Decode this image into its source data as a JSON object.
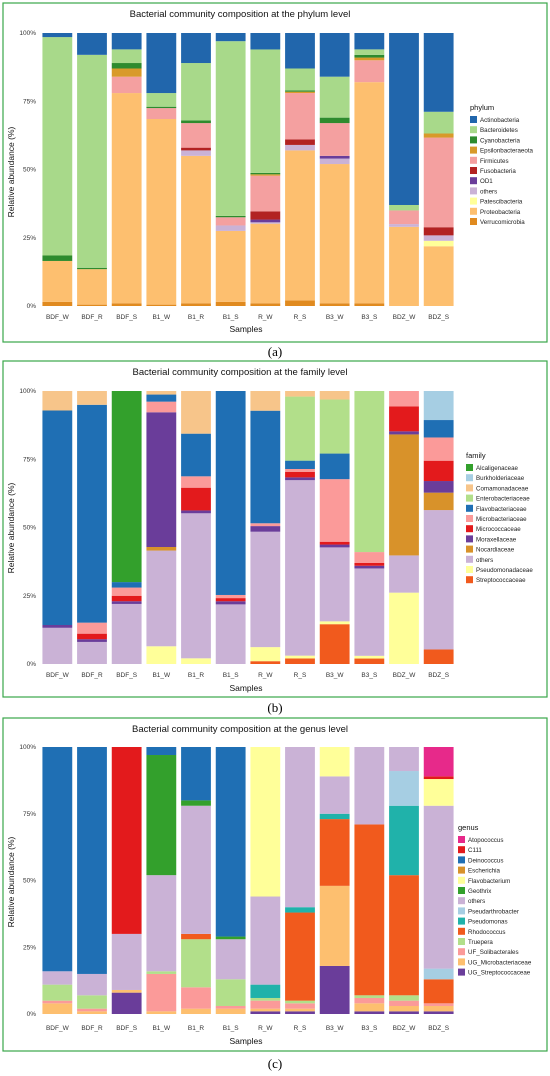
{
  "chart_data": [
    {
      "type": "bar",
      "stacked": true,
      "title": "Bacterial community composition at the phylum level",
      "xlabel": "Samples",
      "ylabel": "Relative abundance (%)",
      "ylim": [
        0,
        100
      ],
      "yticks": [
        "0%",
        "25%",
        "50%",
        "75%",
        "100%"
      ],
      "legend_title": "phylum",
      "legend_position": "right",
      "caption": "(a)",
      "categories": [
        "BDF_W",
        "BDF_R",
        "BDF_S",
        "B1_W",
        "B1_R",
        "B1_S",
        "R_W",
        "R_S",
        "B3_W",
        "B3_S",
        "BDZ_W",
        "BDZ_S"
      ],
      "series": [
        {
          "name": "Actinobacteria",
          "color": "#2166ac",
          "values": [
            1.5,
            8,
            6,
            22,
            11,
            3,
            6,
            13,
            16,
            6,
            63,
            29
          ]
        },
        {
          "name": "Bacteroidetes",
          "color": "#a8d98a",
          "values": [
            80,
            78,
            5,
            5,
            21,
            64,
            45,
            8,
            15,
            2,
            2,
            8
          ]
        },
        {
          "name": "Cyanobacteria",
          "color": "#2e8b2e",
          "values": [
            2,
            0.5,
            2,
            0.5,
            1,
            0.5,
            0.5,
            0.5,
            2,
            1,
            0,
            0
          ]
        },
        {
          "name": "Epsilonbacteraeota",
          "color": "#d89a2a",
          "values": [
            0,
            0,
            3,
            0,
            0,
            0,
            0.5,
            0.5,
            0,
            1,
            0,
            1.5
          ]
        },
        {
          "name": "Firmicutes",
          "color": "#f4a0a0",
          "values": [
            0,
            0,
            6,
            4,
            9,
            3,
            13,
            17,
            12,
            8,
            5,
            33
          ]
        },
        {
          "name": "Fusobacteria",
          "color": "#b22222",
          "values": [
            0,
            0,
            0,
            0,
            1,
            0,
            3,
            2,
            0,
            0,
            0,
            3
          ]
        },
        {
          "name": "OD1",
          "color": "#6a3d9a",
          "values": [
            0,
            0,
            0,
            0,
            0,
            0,
            1,
            0,
            1,
            0,
            0,
            0
          ]
        },
        {
          "name": "others",
          "color": "#cab2d6",
          "values": [
            0,
            0,
            0,
            0,
            2,
            2,
            0.5,
            2,
            2,
            0,
            1,
            2
          ]
        },
        {
          "name": "Patescibacteria",
          "color": "#ffff99",
          "values": [
            0,
            0,
            0,
            0,
            0,
            0,
            0,
            0,
            0,
            0,
            0,
            2
          ]
        },
        {
          "name": "Proteobacteria",
          "color": "#fdbf6f",
          "values": [
            15,
            13,
            77,
            68,
            54,
            26,
            29,
            55,
            51,
            81,
            29,
            22
          ]
        },
        {
          "name": "Verrucomicrobia",
          "color": "#e08a1f",
          "values": [
            1.5,
            0.5,
            1,
            0.5,
            1,
            1.5,
            1,
            2,
            1,
            1,
            0,
            0
          ]
        }
      ]
    },
    {
      "type": "bar",
      "stacked": true,
      "title": "Bacterial community composition at the family level",
      "xlabel": "Samples",
      "ylabel": "Relative abundance (%)",
      "ylim": [
        0,
        100
      ],
      "yticks": [
        "0%",
        "25%",
        "50%",
        "75%",
        "100%"
      ],
      "legend_title": "family",
      "legend_position": "right",
      "caption": "(b)",
      "categories": [
        "BDF_W",
        "BDF_R",
        "BDF_S",
        "B1_W",
        "B1_R",
        "B1_S",
        "R_W",
        "R_S",
        "B3_W",
        "B3_S",
        "BDZ_W",
        "BDZ_S"
      ],
      "series": [
        {
          "name": "Alcaligenaceae",
          "color": "#33a02c",
          "values": [
            0,
            0,
            70,
            0,
            0,
            0,
            0,
            0,
            0,
            0,
            0,
            0
          ]
        },
        {
          "name": "Burkholderiaceae",
          "color": "#a6cee3",
          "values": [
            0,
            0,
            0,
            0,
            0,
            0,
            0,
            0,
            0,
            0,
            0,
            10
          ]
        },
        {
          "name": "Comamonadaceae",
          "color": "#f7c58a",
          "values": [
            7,
            5,
            0,
            1,
            15,
            0,
            7,
            2,
            3,
            0,
            0,
            0
          ]
        },
        {
          "name": "Enterobacteriaceae",
          "color": "#b2df8a",
          "values": [
            0,
            0,
            0,
            0,
            0,
            0,
            0,
            23,
            19,
            59,
            0,
            0
          ]
        },
        {
          "name": "Flavobacteriaceae",
          "color": "#1f6fb4",
          "values": [
            77,
            79,
            2,
            2,
            15,
            65,
            40,
            3,
            9,
            0,
            0,
            6
          ]
        },
        {
          "name": "Microbacteriaceae",
          "color": "#fb9a99",
          "values": [
            0,
            1,
            0,
            3,
            2,
            0,
            0,
            0,
            22,
            4,
            3,
            8
          ]
        },
        {
          "name": "Micrococcaceae",
          "color": "#e31a1c",
          "values": [
            0,
            0,
            0,
            0,
            8,
            0,
            0,
            0,
            0,
            0,
            15,
            8
          ]
        },
        {
          "name": "Moraxellaceae",
          "color": "#6a3d9a",
          "values": [
            0,
            0,
            0,
            38,
            0,
            0,
            2,
            1,
            0,
            0,
            0,
            4
          ]
        },
        {
          "name": "Nocardiaceae",
          "color": "#d8922a",
          "values": [
            0,
            0,
            0,
            1,
            0,
            0,
            0,
            0,
            0,
            0,
            39,
            6
          ]
        },
        {
          "name": "others",
          "color": "#cab2d6",
          "values": [
            0,
            0,
            0,
            26,
            0,
            0,
            0,
            0,
            0,
            0,
            13,
            0
          ]
        },
        {
          "name": "Pseudomonadaceae",
          "color": "#ffff99",
          "values": [
            0,
            0,
            0,
            6,
            0,
            0,
            0,
            0,
            0,
            0,
            0,
            0
          ]
        },
        {
          "name": "Streptococcaceae",
          "color": "#f15a1d",
          "values": [
            0,
            0,
            0,
            0,
            0,
            0,
            0,
            0,
            0,
            0,
            0,
            0
          ]
        }
      ]
    },
    {
      "type": "bar",
      "stacked": true,
      "title": "Bacterial community composition at the genus level",
      "xlabel": "Samples",
      "ylabel": "Relative abundance (%)",
      "ylim": [
        0,
        100
      ],
      "yticks": [
        "0%",
        "25%",
        "50%",
        "75%",
        "100%"
      ],
      "legend_title": "genus",
      "legend_position": "right",
      "caption": "(c)",
      "categories": [
        "BDF_W",
        "BDF_R",
        "BDF_S",
        "B1_W",
        "B1_R",
        "B1_S",
        "R_W",
        "R_S",
        "B3_W",
        "B3_S",
        "BDZ_W",
        "BDZ_S"
      ],
      "series": [
        {
          "name": "Atopococcus",
          "color": "#e7298a",
          "values": [
            0,
            0,
            0,
            0,
            0,
            0,
            0,
            0,
            0,
            0,
            0,
            0
          ]
        },
        {
          "name": "C111",
          "color": "#e31a1c",
          "values": [
            0,
            0,
            0,
            0,
            0,
            0,
            0,
            0,
            0,
            0,
            0,
            0
          ]
        },
        {
          "name": "Deinococcus",
          "color": "#1f6fb4",
          "values": [
            0,
            0,
            0,
            0,
            0,
            0,
            0,
            0,
            0,
            0,
            0,
            0
          ]
        },
        {
          "name": "Escherichia",
          "color": "#d8922a",
          "values": [
            0,
            0,
            0,
            0,
            0,
            0,
            0,
            0,
            0,
            0,
            0,
            0
          ]
        },
        {
          "name": "Flavobacterium",
          "color": "#ffff99",
          "values": [
            0,
            0,
            0,
            0,
            0,
            0,
            0,
            0,
            0,
            0,
            0,
            0
          ]
        },
        {
          "name": "Geothrix",
          "color": "#33a02c",
          "values": [
            0,
            0,
            0,
            0,
            0,
            0,
            0,
            0,
            0,
            0,
            0,
            0
          ]
        },
        {
          "name": "others",
          "color": "#cab2d6",
          "values": [
            0,
            0,
            0,
            0,
            0,
            0,
            0,
            0,
            0,
            0,
            0,
            0
          ]
        },
        {
          "name": "Pseudarthrobacter",
          "color": "#a6cee3",
          "values": [
            0,
            0,
            0,
            0,
            0,
            0,
            0,
            0,
            0,
            0,
            0,
            0
          ]
        },
        {
          "name": "Pseudomonas",
          "color": "#20b2aa",
          "values": [
            0,
            0,
            0,
            0,
            0,
            0,
            0,
            0,
            0,
            0,
            0,
            0
          ]
        },
        {
          "name": "Rhodococcus",
          "color": "#f15a1d",
          "values": [
            0,
            0,
            0,
            0,
            0,
            0,
            0,
            0,
            0,
            0,
            0,
            0
          ]
        },
        {
          "name": "Truepera",
          "color": "#b2df8a",
          "values": [
            0,
            0,
            0,
            0,
            0,
            0,
            0,
            0,
            0,
            0,
            0,
            0
          ]
        },
        {
          "name": "UF_Solibacterales",
          "color": "#fb9a99",
          "values": [
            0,
            0,
            0,
            0,
            0,
            0,
            0,
            0,
            0,
            0,
            0,
            0
          ]
        },
        {
          "name": "UG_Microbacteriaceae",
          "color": "#fdbf6f",
          "values": [
            0,
            0,
            0,
            0,
            0,
            0,
            0,
            0,
            0,
            0,
            0,
            0
          ]
        },
        {
          "name": "UG_Streptococcaceae",
          "color": "#6a3d9a",
          "values": [
            0,
            0,
            0,
            0,
            0,
            0,
            0,
            0,
            0,
            0,
            0,
            0
          ]
        }
      ]
    }
  ]
}
